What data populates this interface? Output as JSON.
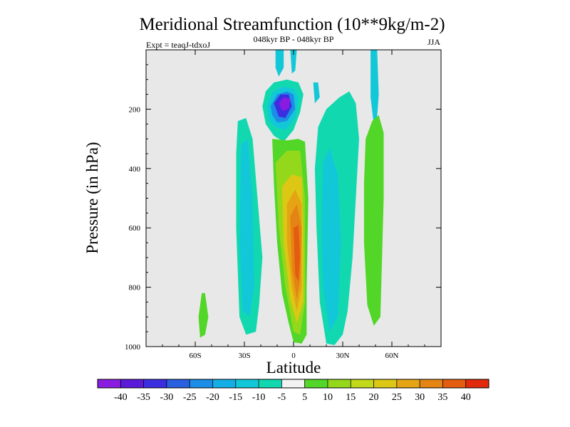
{
  "chart_data": {
    "type": "contour",
    "title": "Meridional Streamfunction (10**9kg/m-2)",
    "subtitle": "048kyr BP - 048kyr BP",
    "left_label": "Expt = teaqJ-tdxoJ",
    "right_label": "JJA",
    "xlabel": "Latitude",
    "ylabel": "Pressure (in hPa)",
    "xlim": [
      -90,
      90
    ],
    "ylim": [
      1000,
      0
    ],
    "x_ticks": [
      {
        "value": -60,
        "label": "60S"
      },
      {
        "value": -30,
        "label": "30S"
      },
      {
        "value": 0,
        "label": "0"
      },
      {
        "value": 30,
        "label": "30N"
      },
      {
        "value": 60,
        "label": "60N"
      }
    ],
    "y_ticks": [
      {
        "value": 200,
        "label": "200"
      },
      {
        "value": 400,
        "label": "400"
      },
      {
        "value": 600,
        "label": "600"
      },
      {
        "value": 800,
        "label": "800"
      },
      {
        "value": 1000,
        "label": "1000"
      }
    ],
    "background_color": "#e8e8e8",
    "colorbar": {
      "colors": [
        "#8a1be0",
        "#5a1ad8",
        "#3a2ee0",
        "#2a5fe0",
        "#1c8de6",
        "#14aee6",
        "#12c8d8",
        "#12d8b0",
        "#f2f2f2",
        "#52d628",
        "#94d81c",
        "#c2d81a",
        "#dcc814",
        "#e4a414",
        "#e48414",
        "#e45c10",
        "#e02a0a"
      ],
      "labels": [
        "-40",
        "-35",
        "-30",
        "-25",
        "-20",
        "-15",
        "-10",
        "-5",
        "5",
        "10",
        "15",
        "20",
        "25",
        "30",
        "35",
        "40"
      ]
    },
    "features": [
      {
        "name": "upper-tropical-negative-cell",
        "kind": "contour",
        "lat": [
          -19,
          5
        ],
        "p": [
          100,
          310
        ],
        "value": -40
      },
      {
        "name": "equatorial-positive-cell",
        "kind": "contour",
        "lat": [
          -12,
          8
        ],
        "p": [
          300,
          990
        ],
        "value": 35
      },
      {
        "name": "southern-negative-band",
        "kind": "contour",
        "lat": [
          -35,
          -19
        ],
        "p": [
          240,
          960
        ],
        "value": -10
      },
      {
        "name": "northern-negative-band",
        "kind": "contour",
        "lat": [
          12,
          40
        ],
        "p": [
          130,
          1000
        ],
        "value": -10
      },
      {
        "name": "northern-positive-band",
        "kind": "contour",
        "lat": [
          43,
          55
        ],
        "p": [
          200,
          930
        ],
        "value": 10
      },
      {
        "name": "southern-positive-patch",
        "kind": "contour",
        "lat": [
          -58,
          -52
        ],
        "p": [
          820,
          960
        ],
        "value": 10
      },
      {
        "name": "upper-northern-negative-strand",
        "kind": "contour",
        "lat": [
          40,
          52
        ],
        "p": [
          0,
          300
        ],
        "value": -5
      }
    ]
  }
}
